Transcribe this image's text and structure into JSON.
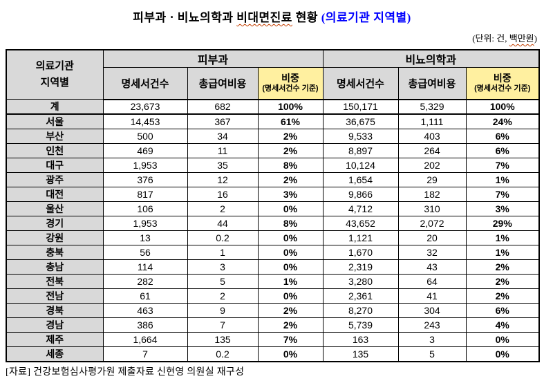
{
  "title": {
    "pre": "피부과ㆍ비뇨의학과 ",
    "underlined": "비대면진료",
    "mid": " 현황 ",
    "accent": "(의료기관 지역별)"
  },
  "unit_note": {
    "pre": "(단위: 건, ",
    "underlined": "백만원",
    "post": ")"
  },
  "table": {
    "corner_header": {
      "line1": "의료기관",
      "line2": "지역별"
    },
    "groups": [
      {
        "label": "피부과"
      },
      {
        "label": "비뇨의학과"
      }
    ],
    "sub_headers": {
      "claims": "명세서건수",
      "cost": "총급여비용",
      "share": "비중",
      "share_note": "(명세서건수 기준)"
    },
    "rows": [
      {
        "total": true,
        "cells": [
          "계",
          "23,673",
          "682",
          "100%",
          "150,171",
          "5,329",
          "100%"
        ]
      },
      {
        "total": false,
        "cells": [
          "서울",
          "14,453",
          "367",
          "61%",
          "36,675",
          "1,111",
          "24%"
        ]
      },
      {
        "total": false,
        "cells": [
          "부산",
          "500",
          "34",
          "2%",
          "9,533",
          "403",
          "6%"
        ]
      },
      {
        "total": false,
        "cells": [
          "인천",
          "469",
          "11",
          "2%",
          "8,897",
          "264",
          "6%"
        ]
      },
      {
        "total": false,
        "cells": [
          "대구",
          "1,953",
          "35",
          "8%",
          "10,124",
          "202",
          "7%"
        ]
      },
      {
        "total": false,
        "cells": [
          "광주",
          "376",
          "12",
          "2%",
          "1,654",
          "29",
          "1%"
        ]
      },
      {
        "total": false,
        "cells": [
          "대전",
          "817",
          "16",
          "3%",
          "9,866",
          "182",
          "7%"
        ]
      },
      {
        "total": false,
        "cells": [
          "울산",
          "106",
          "2",
          "0%",
          "4,712",
          "310",
          "3%"
        ]
      },
      {
        "total": false,
        "cells": [
          "경기",
          "1,953",
          "44",
          "8%",
          "43,652",
          "2,072",
          "29%"
        ]
      },
      {
        "total": false,
        "cells": [
          "강원",
          "13",
          "0.2",
          "0%",
          "1,121",
          "20",
          "1%"
        ]
      },
      {
        "total": false,
        "cells": [
          "충북",
          "56",
          "1",
          "0%",
          "1,670",
          "32",
          "1%"
        ]
      },
      {
        "total": false,
        "cells": [
          "충남",
          "114",
          "3",
          "0%",
          "2,319",
          "43",
          "2%"
        ]
      },
      {
        "total": false,
        "cells": [
          "전북",
          "282",
          "5",
          "1%",
          "3,280",
          "64",
          "2%"
        ]
      },
      {
        "total": false,
        "cells": [
          "전남",
          "61",
          "2",
          "0%",
          "2,361",
          "41",
          "2%"
        ]
      },
      {
        "total": false,
        "cells": [
          "경북",
          "463",
          "9",
          "2%",
          "8,270",
          "304",
          "6%"
        ]
      },
      {
        "total": false,
        "cells": [
          "경남",
          "386",
          "7",
          "2%",
          "5,739",
          "243",
          "4%"
        ]
      },
      {
        "total": false,
        "cells": [
          "제주",
          "1,664",
          "135",
          "7%",
          "163",
          "3",
          "0%"
        ]
      },
      {
        "total": false,
        "cells": [
          "세종",
          "7",
          "0.2",
          "0%",
          "135",
          "5",
          "0%"
        ]
      }
    ]
  },
  "footer": {
    "source": "[자료] 건강보험심사평가원 제출자료 신현영 의원실 재구성"
  },
  "colors": {
    "title_accent": "#0000ff",
    "header_bg": "#d9d9d9",
    "share_header_bg": "#fff0a0",
    "border": "#000000",
    "squiggle": "#c43e00"
  }
}
